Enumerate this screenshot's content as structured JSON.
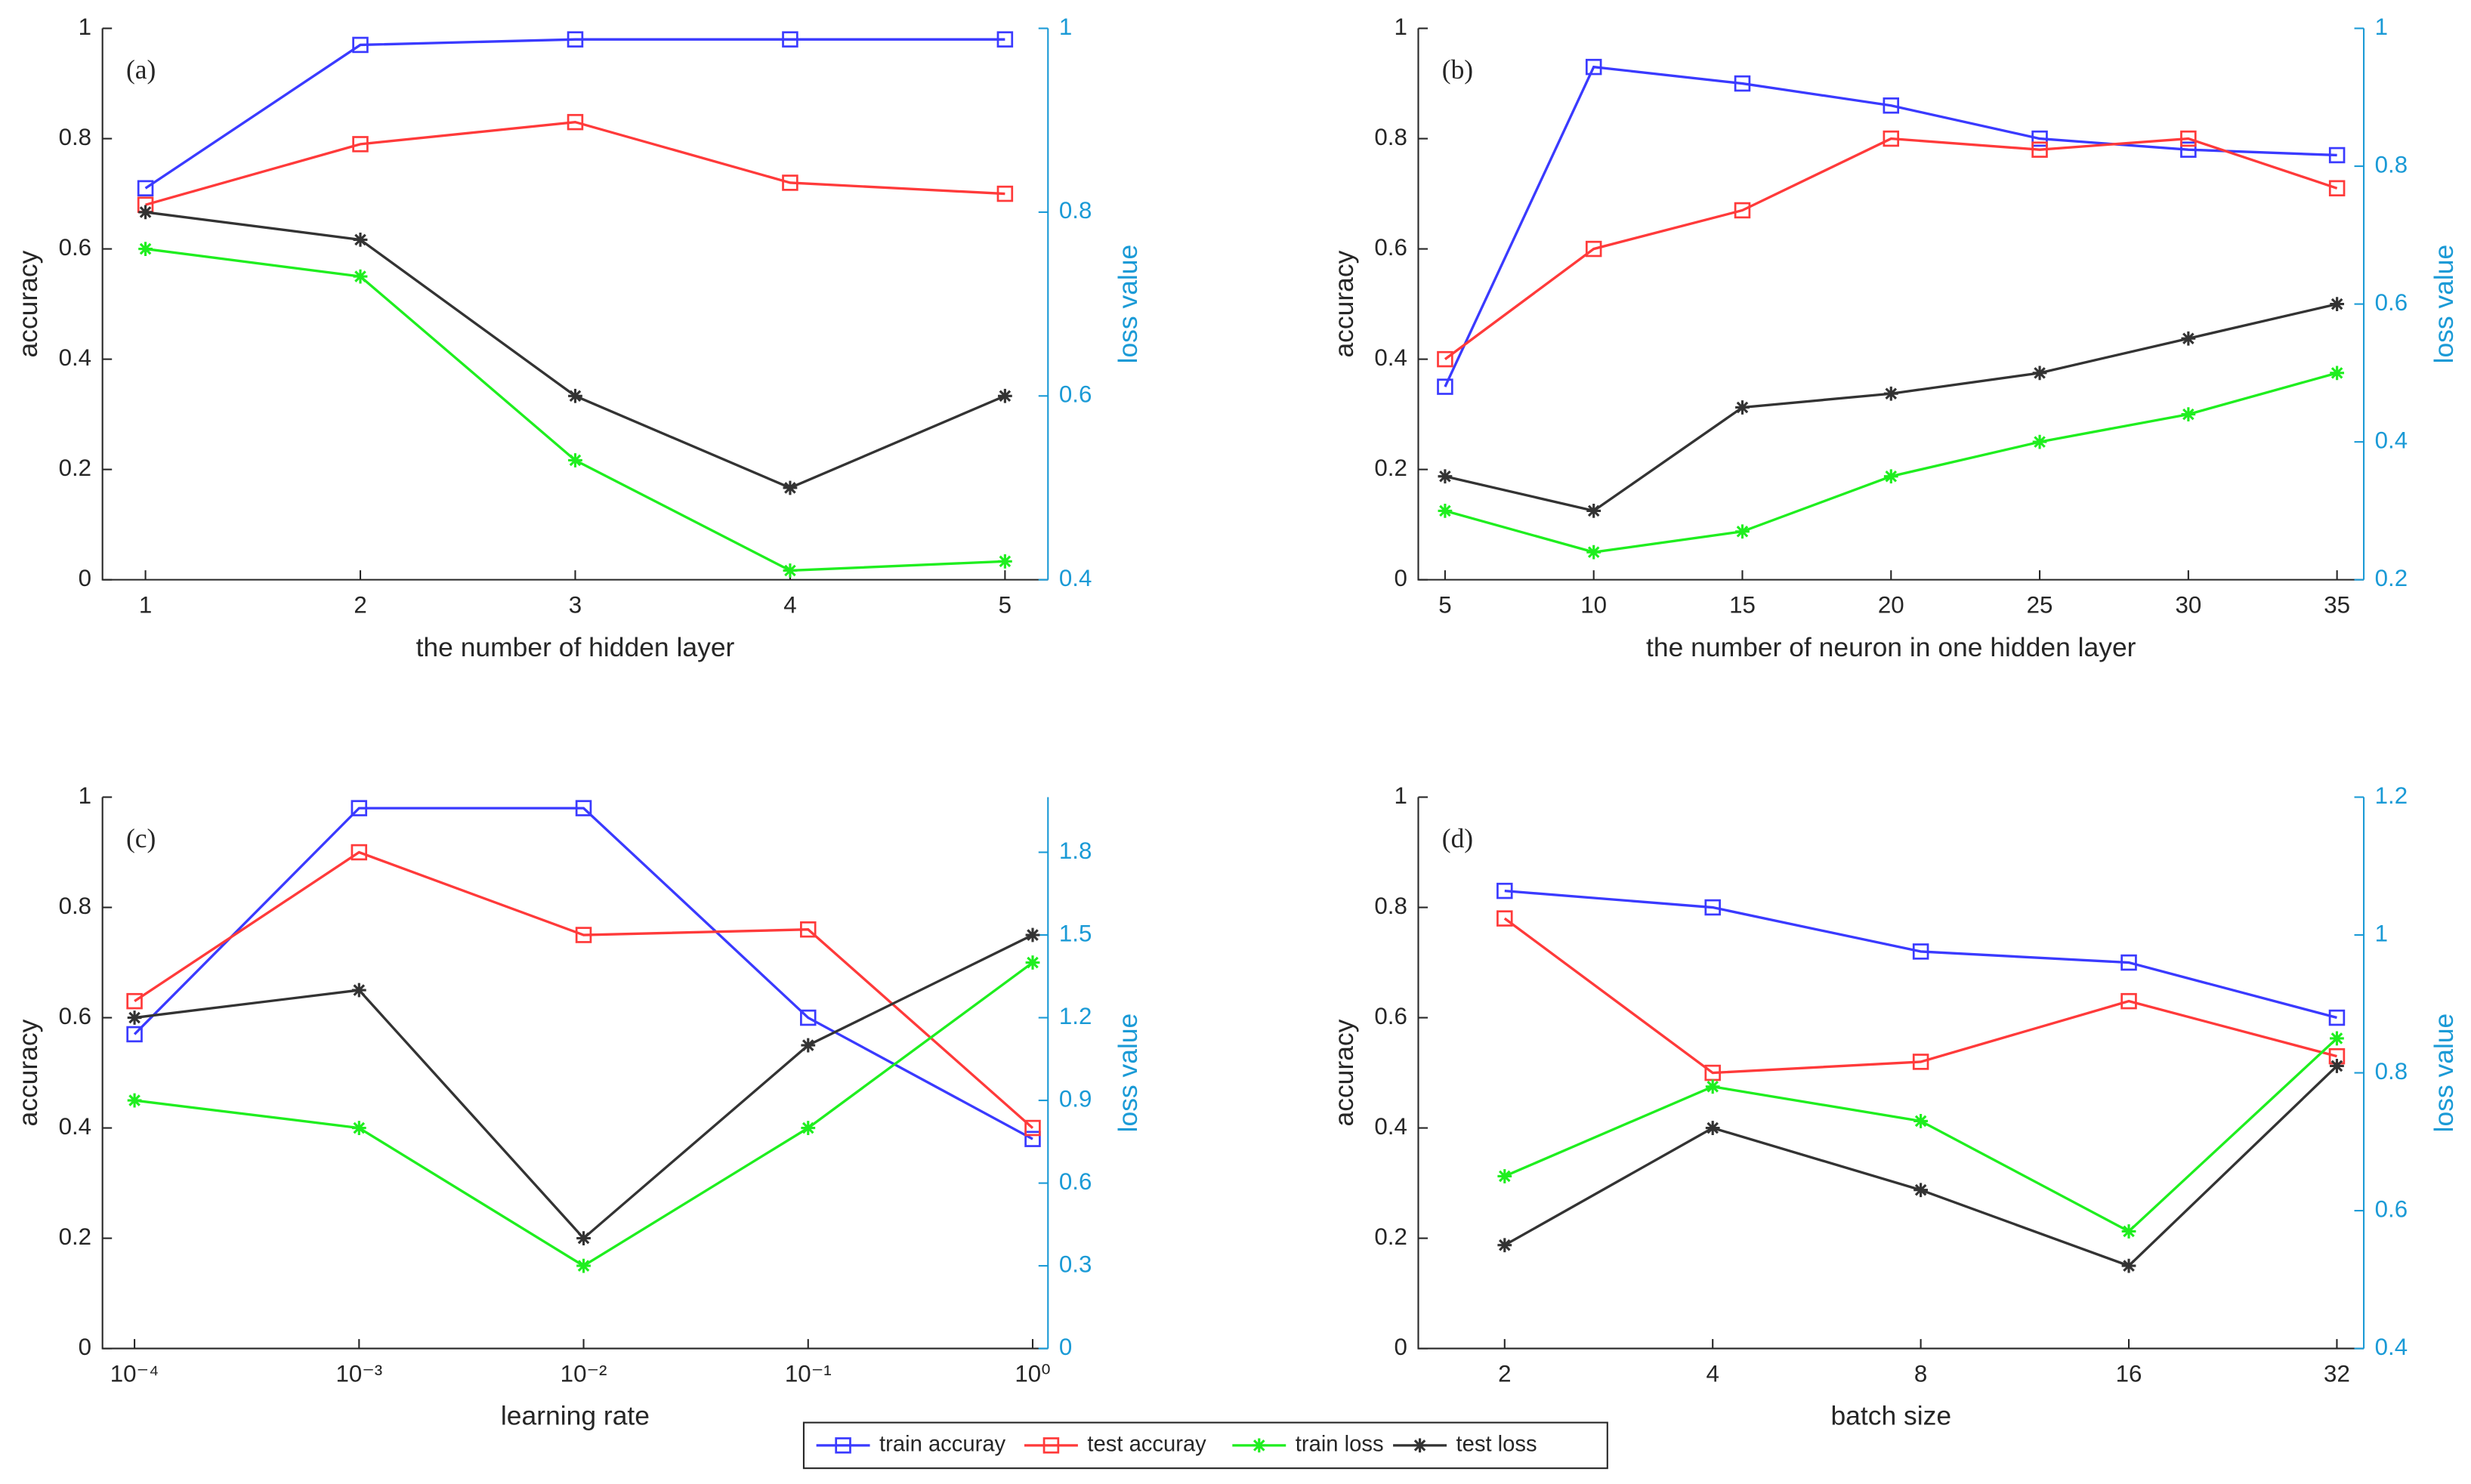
{
  "chart_data": [
    {
      "type": "line",
      "label": "(a)",
      "xlabel": "the number of hidden layer",
      "ylabel": "accuracy",
      "y2label": "loss value",
      "x": [
        1,
        2,
        3,
        4,
        5
      ],
      "xlim": [
        0.8,
        5.2
      ],
      "xticks": [
        1,
        2,
        3,
        4,
        5
      ],
      "ylim": [
        0,
        1
      ],
      "yticks": [
        0,
        0.2,
        0.4,
        0.6,
        0.8,
        1
      ],
      "y2lim": [
        0.4,
        1
      ],
      "y2ticks": [
        0.4,
        0.6,
        0.8,
        1
      ],
      "series": [
        {
          "name": "train accuray",
          "color": "#3a3aff",
          "marker": "square",
          "values": [
            0.71,
            0.97,
            0.98,
            0.98,
            0.98
          ]
        },
        {
          "name": "test accuray",
          "color": "#ff3a3a",
          "marker": "square",
          "values": [
            0.68,
            0.79,
            0.83,
            0.72,
            0.7
          ]
        },
        {
          "name": "train loss",
          "color": "#1fee1f",
          "marker": "asterisk",
          "axis": "y2",
          "values": [
            0.76,
            0.73,
            0.53,
            0.41,
            0.42
          ]
        },
        {
          "name": "test loss",
          "color": "#333333",
          "marker": "asterisk",
          "axis": "y2",
          "values": [
            0.8,
            0.77,
            0.6,
            0.5,
            0.6
          ]
        }
      ]
    },
    {
      "type": "line",
      "label": "(b)",
      "xlabel": "the number of neuron in one hidden layer",
      "ylabel": "accuracy",
      "y2label": "loss value",
      "x": [
        5,
        10,
        15,
        20,
        25,
        30,
        35
      ],
      "xlim": [
        4.1,
        35.9
      ],
      "xticks": [
        5,
        10,
        15,
        20,
        25,
        30,
        35
      ],
      "ylim": [
        0,
        1
      ],
      "yticks": [
        0,
        0.2,
        0.4,
        0.6,
        0.8,
        1
      ],
      "y2lim": [
        0.2,
        1
      ],
      "y2ticks": [
        0.2,
        0.4,
        0.6,
        0.8,
        1
      ],
      "series": [
        {
          "name": "train accuray",
          "color": "#3a3aff",
          "marker": "square",
          "values": [
            0.35,
            0.93,
            0.9,
            0.86,
            0.8,
            0.78,
            0.77
          ]
        },
        {
          "name": "test accuray",
          "color": "#ff3a3a",
          "marker": "square",
          "values": [
            0.4,
            0.6,
            0.67,
            0.8,
            0.78,
            0.8,
            0.71
          ]
        },
        {
          "name": "train loss",
          "color": "#1fee1f",
          "marker": "asterisk",
          "axis": "y2",
          "values": [
            0.3,
            0.24,
            0.27,
            0.35,
            0.4,
            0.44,
            0.5
          ]
        },
        {
          "name": "test loss",
          "color": "#333333",
          "marker": "asterisk",
          "axis": "y2",
          "values": [
            0.35,
            0.3,
            0.45,
            0.47,
            0.5,
            0.55,
            0.6
          ]
        }
      ]
    },
    {
      "type": "line",
      "label": "(c)",
      "xlabel": "learning rate",
      "ylabel": "accuracy",
      "y2label": "loss value",
      "xscale": "log",
      "x": [
        0.0001,
        0.001,
        0.01,
        0.1,
        1
      ],
      "xlim": [
        7.2e-05,
        1.17
      ],
      "xticks": [
        {
          "value": 0.0001,
          "label": "10⁻⁴"
        },
        {
          "value": 0.001,
          "label": "10⁻³"
        },
        {
          "value": 0.01,
          "label": "10⁻²"
        },
        {
          "value": 0.1,
          "label": "10⁻¹"
        },
        {
          "value": 1,
          "label": "10⁰"
        }
      ],
      "ylim": [
        0,
        1
      ],
      "yticks": [
        0,
        0.2,
        0.4,
        0.6,
        0.8,
        1
      ],
      "y2lim": [
        0,
        2
      ],
      "y2ticks": [
        0,
        0.3,
        0.6,
        0.9,
        1.2,
        1.5,
        1.8
      ],
      "series": [
        {
          "name": "train accuray",
          "color": "#3a3aff",
          "marker": "square",
          "values": [
            0.57,
            0.98,
            0.98,
            0.6,
            0.38
          ]
        },
        {
          "name": "test accuray",
          "color": "#ff3a3a",
          "marker": "square",
          "values": [
            0.63,
            0.9,
            0.75,
            0.76,
            0.4
          ]
        },
        {
          "name": "train loss",
          "color": "#1fee1f",
          "marker": "asterisk",
          "axis": "y2",
          "values": [
            0.9,
            0.8,
            0.3,
            0.8,
            1.4
          ]
        },
        {
          "name": "test loss",
          "color": "#333333",
          "marker": "asterisk",
          "axis": "y2",
          "values": [
            1.2,
            1.3,
            0.4,
            1.1,
            1.5
          ]
        }
      ]
    },
    {
      "type": "line",
      "label": "(d)",
      "xlabel": "batch size",
      "ylabel": "accuracy",
      "y2label": "loss value",
      "xscale": "log",
      "x": [
        2,
        4,
        8,
        16,
        32
      ],
      "xlim": [
        1.5,
        35
      ],
      "xticks": [
        2,
        4,
        8,
        16,
        32
      ],
      "ylim": [
        0,
        1
      ],
      "yticks": [
        0,
        0.2,
        0.4,
        0.6,
        0.8,
        1
      ],
      "y2lim": [
        0.4,
        1.2
      ],
      "y2ticks": [
        0.4,
        0.6,
        0.8,
        1,
        1.2
      ],
      "series": [
        {
          "name": "train accuray",
          "color": "#3a3aff",
          "marker": "square",
          "values": [
            0.83,
            0.8,
            0.72,
            0.7,
            0.6
          ]
        },
        {
          "name": "test accuray",
          "color": "#ff3a3a",
          "marker": "square",
          "values": [
            0.78,
            0.5,
            0.52,
            0.63,
            0.53
          ]
        },
        {
          "name": "train loss",
          "color": "#1fee1f",
          "marker": "asterisk",
          "axis": "y2",
          "values": [
            0.65,
            0.78,
            0.73,
            0.57,
            0.85
          ]
        },
        {
          "name": "test loss",
          "color": "#333333",
          "marker": "asterisk",
          "axis": "y2",
          "values": [
            0.55,
            0.72,
            0.63,
            0.52,
            0.81
          ]
        }
      ]
    }
  ]
}
